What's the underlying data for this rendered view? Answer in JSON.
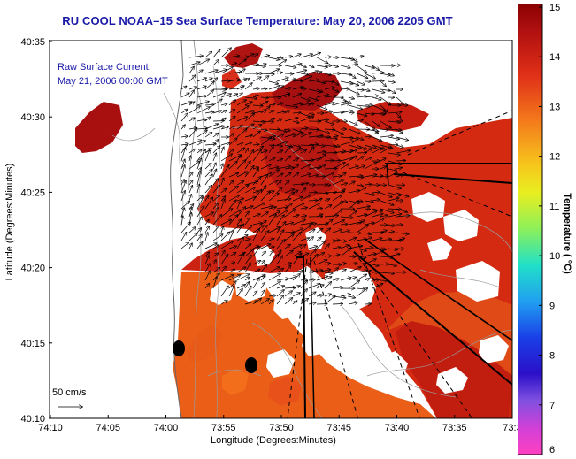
{
  "title": "RU COOL  NOAA–15  Sea Surface Temperature:  May 20, 2006 2205 GMT",
  "annotation": {
    "line1": "Raw Surface Current:",
    "line2": "May 21, 2006 00:00 GMT"
  },
  "scale_label": "50 cm/s",
  "axes": {
    "xlabel": "Longitude (Degrees:Minutes)",
    "ylabel": "Latitude (Degrees:Minutes)",
    "x_ticks": [
      "74:10",
      "74:05",
      "74:00",
      "73:55",
      "73:50",
      "73:45",
      "73:40",
      "73:35",
      "73:3"
    ],
    "y_ticks": [
      "40:35",
      "40:30",
      "40:25",
      "40:20",
      "40:15",
      "40:10"
    ]
  },
  "colorbar": {
    "title": "Temperature ( °C)",
    "ticks": [
      "15",
      "14",
      "13",
      "12",
      "11",
      "10",
      "9",
      "8",
      "7",
      "6"
    ],
    "min": 6,
    "max": 15
  },
  "colors": {
    "title": "#1a1aa8",
    "land": "#ffffff",
    "warm": "#d42a12",
    "hot": "#a61010",
    "mid": "#ee6a1a"
  }
}
